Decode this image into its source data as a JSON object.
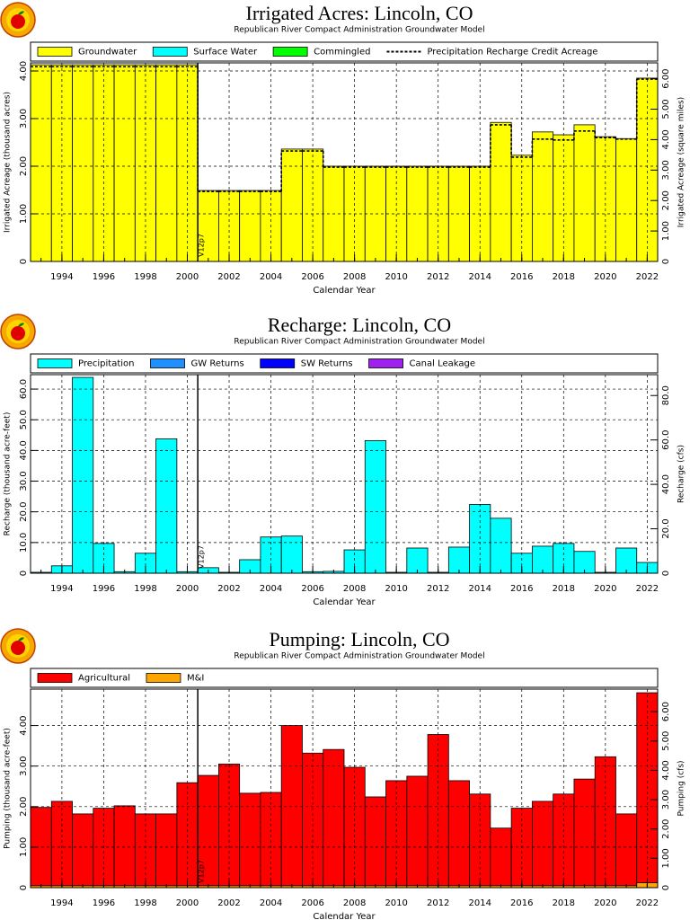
{
  "chart_data": [
    {
      "type": "bar",
      "title": "Irrigated Acres: Lincoln, CO",
      "subtitle": "Republican River Compact Administration Groundwater Model",
      "x_label": "Calendar Year",
      "y_label": "Irrigated Acreage (thousand acres)",
      "y2_label": "Irrigated Acreage (square miles)",
      "x": [
        1993,
        1994,
        1995,
        1996,
        1997,
        1998,
        1999,
        2000,
        2001,
        2002,
        2003,
        2004,
        2005,
        2006,
        2007,
        2008,
        2009,
        2010,
        2011,
        2012,
        2013,
        2014,
        2015,
        2016,
        2017,
        2018,
        2019,
        2020,
        2021,
        2022
      ],
      "xlim": [
        1992.5,
        2022.5
      ],
      "xticks": [
        1994,
        1996,
        1998,
        2000,
        2002,
        2004,
        2006,
        2008,
        2010,
        2012,
        2014,
        2016,
        2018,
        2020,
        2022
      ],
      "ylim": [
        0,
        4.17
      ],
      "yticks": [
        0,
        {
          "value": 1,
          "label": "1.00"
        },
        {
          "value": 2,
          "label": "2.00"
        },
        {
          "value": 3,
          "label": "3.00"
        },
        {
          "value": 4,
          "label": "4.00"
        }
      ],
      "y2lim": [
        0,
        6.52
      ],
      "y2ticks": [
        0,
        {
          "value": 1,
          "label": "1.00"
        },
        {
          "value": 2,
          "label": "2.00"
        },
        {
          "value": 3,
          "label": "3.00"
        },
        {
          "value": 4,
          "label": "4.00"
        },
        {
          "value": 5,
          "label": "5.00"
        },
        {
          "value": 6,
          "label": "6.00"
        }
      ],
      "grid": true,
      "series": [
        {
          "name": "Groundwater",
          "color": "#ffff00",
          "values": [
            4.13,
            4.13,
            4.13,
            4.13,
            4.13,
            4.13,
            4.13,
            4.13,
            1.49,
            1.49,
            1.49,
            1.49,
            2.36,
            2.36,
            2.0,
            2.0,
            2.0,
            2.0,
            2.0,
            2.0,
            2.0,
            2.0,
            2.92,
            2.23,
            2.72,
            2.66,
            2.87,
            2.62,
            2.58,
            3.85
          ]
        },
        {
          "name": "Surface Water",
          "color": "#00ffff",
          "values": [
            0,
            0,
            0,
            0,
            0,
            0,
            0,
            0,
            0,
            0,
            0,
            0,
            0,
            0,
            0,
            0,
            0,
            0,
            0,
            0,
            0,
            0,
            0,
            0,
            0,
            0,
            0,
            0,
            0,
            0
          ]
        },
        {
          "name": "Commingled",
          "color": "#00ff00",
          "values": [
            0,
            0,
            0,
            0,
            0,
            0,
            0,
            0,
            0,
            0,
            0,
            0,
            0,
            0,
            0,
            0,
            0,
            0,
            0,
            0,
            0,
            0,
            0,
            0,
            0,
            0,
            0,
            0,
            0,
            0
          ]
        },
        {
          "name": "Precipitation Recharge Credit Acreage",
          "type": "step-line",
          "color": "#000000",
          "values": [
            4.09,
            4.09,
            4.09,
            4.09,
            4.09,
            4.09,
            4.09,
            4.09,
            1.47,
            1.47,
            1.47,
            1.47,
            2.32,
            2.32,
            1.98,
            1.98,
            1.98,
            1.98,
            1.98,
            1.98,
            1.98,
            1.98,
            2.87,
            2.19,
            2.57,
            2.55,
            2.74,
            2.6,
            2.57,
            3.83
          ]
        }
      ],
      "annotation": {
        "text": "V12p7",
        "x": 2000.5
      }
    },
    {
      "type": "bar",
      "title": "Recharge: Lincoln, CO",
      "subtitle": "Republican River Compact Administration Groundwater Model",
      "x_label": "Calendar Year",
      "y_label": "Recharge (thousand acre-feet)",
      "y2_label": "Recharge (cfs)",
      "x": [
        1993,
        1994,
        1995,
        1996,
        1997,
        1998,
        1999,
        2000,
        2001,
        2002,
        2003,
        2004,
        2005,
        2006,
        2007,
        2008,
        2009,
        2010,
        2011,
        2012,
        2013,
        2014,
        2015,
        2016,
        2017,
        2018,
        2019,
        2020,
        2021,
        2022
      ],
      "xlim": [
        1992.5,
        2022.5
      ],
      "xticks": [
        1994,
        1996,
        1998,
        2000,
        2002,
        2004,
        2006,
        2008,
        2010,
        2012,
        2014,
        2016,
        2018,
        2020,
        2022
      ],
      "ylim": [
        0,
        64.7
      ],
      "yticks": [
        0,
        {
          "value": 10,
          "label": "10.0"
        },
        {
          "value": 20,
          "label": "20.0"
        },
        {
          "value": 30,
          "label": "30.0"
        },
        {
          "value": 40,
          "label": "40.0"
        },
        {
          "value": 50,
          "label": "50.0"
        },
        {
          "value": 60,
          "label": "60.0"
        }
      ],
      "y2lim": [
        0,
        89.4
      ],
      "y2ticks": [
        0,
        {
          "value": 20,
          "label": "20.0"
        },
        {
          "value": 40,
          "label": "40.0"
        },
        {
          "value": 60,
          "label": "60.0"
        },
        {
          "value": 80,
          "label": "80.0"
        }
      ],
      "grid": true,
      "series": [
        {
          "name": "Precipitation",
          "color": "#00ffff",
          "values": [
            0.3,
            2.4,
            63.8,
            9.7,
            0.5,
            6.5,
            43.8,
            0.5,
            1.8,
            0.3,
            4.4,
            11.8,
            12.1,
            0.5,
            0.6,
            7.6,
            43.2,
            0.3,
            8.2,
            0.3,
            8.5,
            22.4,
            17.9,
            6.5,
            8.8,
            9.7,
            7.1,
            0.3,
            8.2,
            3.5
          ]
        },
        {
          "name": "GW Returns",
          "color": "#1e90ff",
          "values": [
            0,
            0,
            0,
            0,
            0,
            0,
            0,
            0,
            0,
            0,
            0,
            0,
            0,
            0,
            0,
            0,
            0,
            0,
            0,
            0,
            0,
            0,
            0,
            0,
            0,
            0,
            0,
            0,
            0,
            0
          ]
        },
        {
          "name": "SW Returns",
          "color": "#0000ff",
          "values": [
            0,
            0,
            0,
            0,
            0,
            0,
            0,
            0,
            0,
            0,
            0,
            0,
            0,
            0,
            0,
            0,
            0,
            0,
            0,
            0,
            0,
            0,
            0,
            0,
            0,
            0,
            0,
            0,
            0,
            0
          ]
        },
        {
          "name": "Canal Leakage",
          "color": "#a020f0",
          "values": [
            0,
            0,
            0,
            0,
            0,
            0,
            0,
            0,
            0,
            0,
            0,
            0,
            0,
            0,
            0,
            0,
            0,
            0,
            0,
            0,
            0,
            0,
            0,
            0,
            0,
            0,
            0,
            0,
            0,
            0
          ]
        }
      ],
      "annotation": {
        "text": "V12p7",
        "x": 2000.5
      }
    },
    {
      "type": "bar",
      "title": "Pumping: Lincoln, CO",
      "subtitle": "Republican River Compact Administration Groundwater Model",
      "x_label": "Calendar Year",
      "y_label": "Pumping (thousand acre-feet)",
      "y2_label": "Pumping (cfs)",
      "x": [
        1993,
        1994,
        1995,
        1996,
        1997,
        1998,
        1999,
        2000,
        2001,
        2002,
        2003,
        2004,
        2005,
        2006,
        2007,
        2008,
        2009,
        2010,
        2011,
        2012,
        2013,
        2014,
        2015,
        2016,
        2017,
        2018,
        2019,
        2020,
        2021,
        2022
      ],
      "xlim": [
        1992.5,
        2022.5
      ],
      "xticks": [
        1994,
        1996,
        1998,
        2000,
        2002,
        2004,
        2006,
        2008,
        2010,
        2012,
        2014,
        2016,
        2018,
        2020,
        2022
      ],
      "ylim": [
        0,
        4.9
      ],
      "yticks": [
        0,
        {
          "value": 1,
          "label": "1.00"
        },
        {
          "value": 2,
          "label": "2.00"
        },
        {
          "value": 3,
          "label": "3.00"
        },
        {
          "value": 4,
          "label": "4.00"
        }
      ],
      "y2lim": [
        0,
        6.77
      ],
      "y2ticks": [
        0,
        {
          "value": 1,
          "label": "1.00"
        },
        {
          "value": 2,
          "label": "2.00"
        },
        {
          "value": 3,
          "label": "3.00"
        },
        {
          "value": 4,
          "label": "4.00"
        },
        {
          "value": 5,
          "label": "5.00"
        },
        {
          "value": 6,
          "label": "6.00"
        }
      ],
      "grid": true,
      "series": [
        {
          "name": "Agricultural",
          "color": "#ff0000",
          "values": [
            1.93,
            2.08,
            1.77,
            1.91,
            1.97,
            1.77,
            1.77,
            2.54,
            2.72,
            3.0,
            2.28,
            2.3,
            3.95,
            3.27,
            3.36,
            2.92,
            2.19,
            2.59,
            2.7,
            3.73,
            2.59,
            2.26,
            1.42,
            1.91,
            2.08,
            2.26,
            2.63,
            3.18,
            1.77,
            4.69
          ]
        },
        {
          "name": "M&I",
          "color": "#ffa500",
          "values": [
            0.05,
            0.05,
            0.05,
            0.05,
            0.05,
            0.05,
            0.05,
            0.05,
            0.05,
            0.05,
            0.05,
            0.05,
            0.05,
            0.05,
            0.05,
            0.05,
            0.05,
            0.05,
            0.05,
            0.05,
            0.05,
            0.05,
            0.05,
            0.05,
            0.05,
            0.05,
            0.05,
            0.05,
            0.05,
            0.12
          ]
        }
      ],
      "annotation": {
        "text": "V12p7",
        "x": 2000.5
      }
    }
  ]
}
